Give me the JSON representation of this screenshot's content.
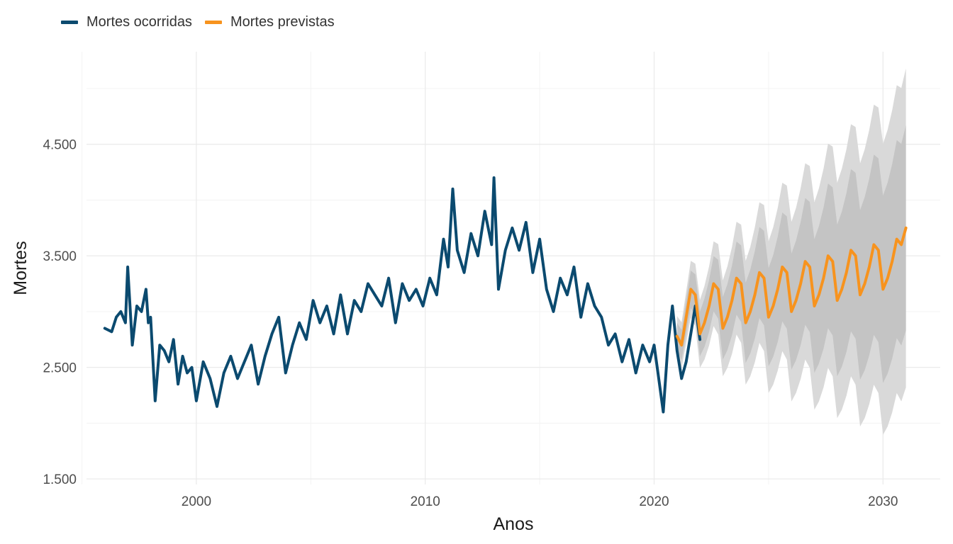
{
  "chart_data": {
    "type": "line",
    "title": "",
    "xlabel": "Anos",
    "ylabel": "Mortes",
    "xlim": [
      1995.2,
      2032.5
    ],
    "ylim": [
      1450,
      5330
    ],
    "grid": true,
    "legend_position": "top-left",
    "x_ticks": [
      2000,
      2010,
      2020,
      2030
    ],
    "x_tick_labels": [
      "2000",
      "2010",
      "2020",
      "2030"
    ],
    "y_ticks": [
      1500,
      2500,
      3500,
      4500
    ],
    "y_tick_labels": [
      "1.500",
      "2.500",
      "3.500",
      "4.500"
    ],
    "colors": {
      "observed": "#0b4a6f",
      "forecast": "#f7931e",
      "band_95": "#d9d9d9",
      "band_80": "#c4c4c4",
      "grid": "#ebebeb"
    },
    "series": [
      {
        "name": "Mortes ocorridas",
        "points": [
          [
            1996.0,
            2850
          ],
          [
            1996.3,
            2820
          ],
          [
            1996.5,
            2950
          ],
          [
            1996.7,
            3000
          ],
          [
            1996.9,
            2900
          ],
          [
            1997.0,
            3400
          ],
          [
            1997.2,
            2700
          ],
          [
            1997.4,
            3050
          ],
          [
            1997.6,
            3000
          ],
          [
            1997.8,
            3200
          ],
          [
            1997.9,
            2900
          ],
          [
            1998.0,
            2950
          ],
          [
            1998.2,
            2200
          ],
          [
            1998.4,
            2700
          ],
          [
            1998.6,
            2650
          ],
          [
            1998.8,
            2550
          ],
          [
            1999.0,
            2750
          ],
          [
            1999.2,
            2350
          ],
          [
            1999.4,
            2600
          ],
          [
            1999.6,
            2450
          ],
          [
            1999.8,
            2500
          ],
          [
            2000.0,
            2200
          ],
          [
            2000.3,
            2550
          ],
          [
            2000.6,
            2400
          ],
          [
            2000.9,
            2150
          ],
          [
            2001.2,
            2450
          ],
          [
            2001.5,
            2600
          ],
          [
            2001.8,
            2400
          ],
          [
            2002.1,
            2550
          ],
          [
            2002.4,
            2700
          ],
          [
            2002.7,
            2350
          ],
          [
            2003.0,
            2600
          ],
          [
            2003.3,
            2800
          ],
          [
            2003.6,
            2950
          ],
          [
            2003.9,
            2450
          ],
          [
            2004.2,
            2700
          ],
          [
            2004.5,
            2900
          ],
          [
            2004.8,
            2750
          ],
          [
            2005.1,
            3100
          ],
          [
            2005.4,
            2900
          ],
          [
            2005.7,
            3050
          ],
          [
            2006.0,
            2800
          ],
          [
            2006.3,
            3150
          ],
          [
            2006.6,
            2800
          ],
          [
            2006.9,
            3100
          ],
          [
            2007.2,
            3000
          ],
          [
            2007.5,
            3250
          ],
          [
            2007.8,
            3150
          ],
          [
            2008.1,
            3050
          ],
          [
            2008.4,
            3300
          ],
          [
            2008.7,
            2900
          ],
          [
            2009.0,
            3250
          ],
          [
            2009.3,
            3100
          ],
          [
            2009.6,
            3200
          ],
          [
            2009.9,
            3050
          ],
          [
            2010.2,
            3300
          ],
          [
            2010.5,
            3150
          ],
          [
            2010.8,
            3650
          ],
          [
            2011.0,
            3400
          ],
          [
            2011.2,
            4100
          ],
          [
            2011.4,
            3550
          ],
          [
            2011.7,
            3350
          ],
          [
            2012.0,
            3700
          ],
          [
            2012.3,
            3500
          ],
          [
            2012.6,
            3900
          ],
          [
            2012.9,
            3600
          ],
          [
            2013.0,
            4200
          ],
          [
            2013.2,
            3200
          ],
          [
            2013.5,
            3550
          ],
          [
            2013.8,
            3750
          ],
          [
            2014.1,
            3550
          ],
          [
            2014.4,
            3800
          ],
          [
            2014.7,
            3350
          ],
          [
            2015.0,
            3650
          ],
          [
            2015.3,
            3200
          ],
          [
            2015.6,
            3000
          ],
          [
            2015.9,
            3300
          ],
          [
            2016.2,
            3150
          ],
          [
            2016.5,
            3400
          ],
          [
            2016.8,
            2950
          ],
          [
            2017.1,
            3250
          ],
          [
            2017.4,
            3050
          ],
          [
            2017.7,
            2950
          ],
          [
            2018.0,
            2700
          ],
          [
            2018.3,
            2800
          ],
          [
            2018.6,
            2550
          ],
          [
            2018.9,
            2750
          ],
          [
            2019.2,
            2450
          ],
          [
            2019.5,
            2700
          ],
          [
            2019.8,
            2550
          ],
          [
            2020.0,
            2700
          ],
          [
            2020.2,
            2400
          ],
          [
            2020.4,
            2100
          ],
          [
            2020.6,
            2700
          ],
          [
            2020.8,
            3050
          ],
          [
            2021.0,
            2650
          ],
          [
            2021.2,
            2400
          ],
          [
            2021.4,
            2550
          ],
          [
            2021.6,
            2800
          ],
          [
            2021.8,
            3050
          ],
          [
            2022.0,
            2750
          ]
        ]
      },
      {
        "name": "Mortes previstas",
        "points": [
          [
            2021.0,
            2780
          ],
          [
            2021.2,
            2700
          ],
          [
            2021.4,
            2950
          ],
          [
            2021.6,
            3200
          ],
          [
            2021.8,
            3150
          ],
          [
            2022.0,
            2800
          ],
          [
            2022.2,
            2900
          ],
          [
            2022.4,
            3050
          ],
          [
            2022.6,
            3250
          ],
          [
            2022.8,
            3200
          ],
          [
            2023.0,
            2850
          ],
          [
            2023.2,
            2950
          ],
          [
            2023.4,
            3100
          ],
          [
            2023.6,
            3300
          ],
          [
            2023.8,
            3250
          ],
          [
            2024.0,
            2900
          ],
          [
            2024.2,
            3000
          ],
          [
            2024.4,
            3150
          ],
          [
            2024.6,
            3350
          ],
          [
            2024.8,
            3300
          ],
          [
            2025.0,
            2950
          ],
          [
            2025.2,
            3050
          ],
          [
            2025.4,
            3200
          ],
          [
            2025.6,
            3400
          ],
          [
            2025.8,
            3350
          ],
          [
            2026.0,
            3000
          ],
          [
            2026.2,
            3100
          ],
          [
            2026.4,
            3250
          ],
          [
            2026.6,
            3450
          ],
          [
            2026.8,
            3400
          ],
          [
            2027.0,
            3050
          ],
          [
            2027.2,
            3150
          ],
          [
            2027.4,
            3300
          ],
          [
            2027.6,
            3500
          ],
          [
            2027.8,
            3450
          ],
          [
            2028.0,
            3100
          ],
          [
            2028.2,
            3200
          ],
          [
            2028.4,
            3350
          ],
          [
            2028.6,
            3550
          ],
          [
            2028.8,
            3500
          ],
          [
            2029.0,
            3150
          ],
          [
            2029.2,
            3250
          ],
          [
            2029.4,
            3400
          ],
          [
            2029.6,
            3600
          ],
          [
            2029.8,
            3550
          ],
          [
            2030.0,
            3200
          ],
          [
            2030.2,
            3300
          ],
          [
            2030.4,
            3450
          ],
          [
            2030.6,
            3650
          ],
          [
            2030.8,
            3600
          ],
          [
            2031.0,
            3750
          ]
        ]
      }
    ]
  }
}
